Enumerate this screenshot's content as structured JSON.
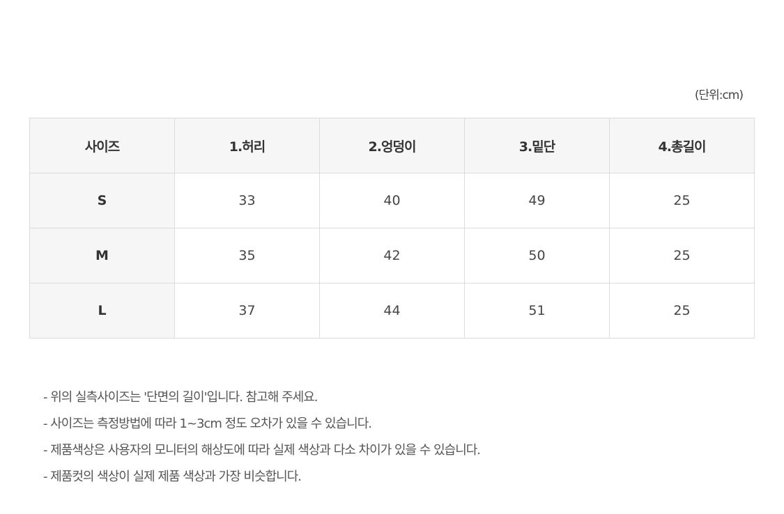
{
  "unit_label": "(단위:cm)",
  "table": {
    "headers": [
      "사이즈",
      "1.허리",
      "2.엉덩이",
      "3.밑단",
      "4.총길이"
    ],
    "rows": [
      [
        "S",
        "33",
        "40",
        "49",
        "25"
      ],
      [
        "M",
        "35",
        "42",
        "50",
        "25"
      ],
      [
        "L",
        "37",
        "44",
        "51",
        "25"
      ]
    ]
  },
  "notes": [
    "- 위의 실측사이즈는 '단면의 길이'입니다. 참고해 주세요.",
    "- 사이즈는 측정방법에 따라 1~3cm 정도 오차가 있을 수 있습니다.",
    "- 제품색상은 사용자의 모니터의 해상도에 따라 실제 색상과 다소 차이가 있을 수 있습니다.",
    "- 제품컷의 색상이 실제 제품 색상과 가장 비슷합니다."
  ]
}
